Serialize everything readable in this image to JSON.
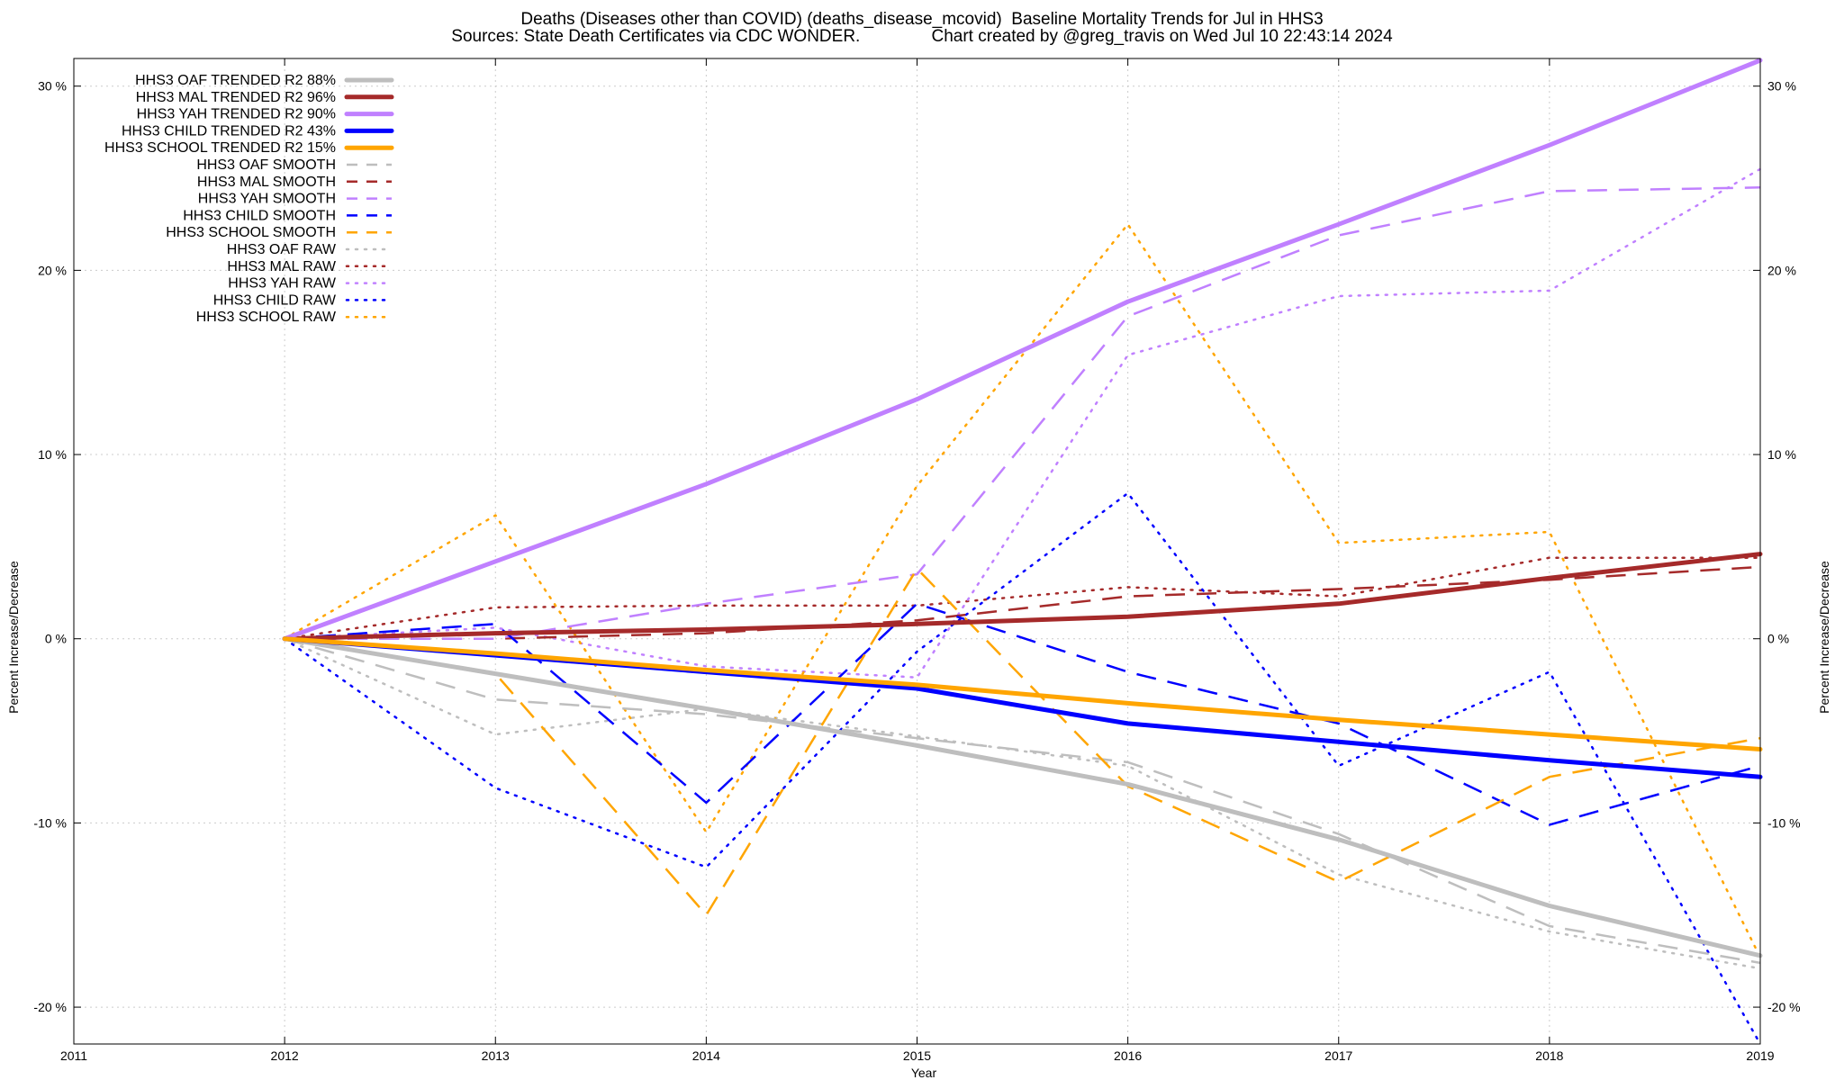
{
  "chart_data": {
    "type": "line",
    "title": "Deaths (Diseases other than COVID) (deaths_disease_mcovid)  Baseline Mortality Trends for Jul in HHS3",
    "subtitle": "Sources: State Death Certificates via CDC WONDER.               Chart created by @greg_travis on Wed Jul 10 22:43:14 2024",
    "xlabel": "Year",
    "ylabel": "Percent Increase/Decrease",
    "y2label": "Percent Increase/Decrease",
    "xlim": [
      2011,
      2019
    ],
    "ylim": [
      -22,
      31.5
    ],
    "x_ticks": [
      "2011",
      "2012",
      "2013",
      "2014",
      "2015",
      "2016",
      "2017",
      "2018",
      "2019"
    ],
    "y_ticks": [
      {
        "value": 30,
        "label": "30 %"
      },
      {
        "value": 20,
        "label": "20 %"
      },
      {
        "value": 10,
        "label": "10 %"
      },
      {
        "value": 0,
        "label": "0 %"
      },
      {
        "value": -10,
        "label": "-10 %"
      },
      {
        "value": -20,
        "label": "-20 %"
      }
    ],
    "grid": true,
    "legend_position": "top-left",
    "x": [
      2012,
      2013,
      2014,
      2015,
      2016,
      2017,
      2018,
      2019
    ],
    "series": [
      {
        "name": "HHS3 OAF TRENDED R2  88%",
        "style": "solid",
        "color": "#bebebe",
        "values": [
          0,
          -1.9,
          -3.8,
          -5.8,
          -7.9,
          -10.9,
          -14.5,
          -17.2
        ]
      },
      {
        "name": "HHS3 MAL TRENDED R2  96%",
        "style": "solid",
        "color": "#a52a2a",
        "values": [
          0,
          0.3,
          0.5,
          0.8,
          1.2,
          1.9,
          3.3,
          4.6
        ]
      },
      {
        "name": "HHS3 YAH TRENDED R2  90%",
        "style": "solid",
        "color": "#c080ff",
        "values": [
          0,
          4.2,
          8.4,
          13.0,
          18.3,
          22.5,
          26.8,
          31.4
        ]
      },
      {
        "name": "HHS3 CHILD TRENDED R2  43%",
        "style": "solid",
        "color": "#0000ff",
        "values": [
          0,
          -0.9,
          -1.8,
          -2.7,
          -4.6,
          -5.6,
          -6.6,
          -7.5
        ]
      },
      {
        "name": "HHS3 SCHOOL TRENDED R2  15%",
        "style": "solid",
        "color": "#ffa500",
        "values": [
          0,
          -0.8,
          -1.7,
          -2.5,
          -3.5,
          -4.4,
          -5.2,
          -6.0
        ]
      },
      {
        "name": "HHS3 OAF SMOOTH",
        "style": "dash",
        "color": "#bebebe",
        "values": [
          0,
          -3.3,
          -4.1,
          -5.4,
          -6.7,
          -10.6,
          -15.6,
          -17.6
        ]
      },
      {
        "name": "HHS3 MAL SMOOTH",
        "style": "dash",
        "color": "#a52a2a",
        "values": [
          0,
          0,
          0.3,
          1.0,
          2.3,
          2.7,
          3.2,
          3.9
        ]
      },
      {
        "name": "HHS3 YAH SMOOTH",
        "style": "dash",
        "color": "#c080ff",
        "values": [
          0,
          0,
          1.9,
          3.5,
          17.5,
          21.9,
          24.3,
          24.5
        ]
      },
      {
        "name": "HHS3 CHILD SMOOTH",
        "style": "dash",
        "color": "#0000ff",
        "values": [
          0,
          0.8,
          -8.9,
          1.9,
          -1.8,
          -4.6,
          -10.1,
          -6.9
        ]
      },
      {
        "name": "HHS3 SCHOOL SMOOTH",
        "style": "dash",
        "color": "#ffa500",
        "values": [
          0,
          -1.9,
          -15.0,
          3.8,
          -8.0,
          -13.2,
          -7.5,
          -5.4
        ]
      },
      {
        "name": "HHS3 OAF RAW",
        "style": "dot",
        "color": "#bebebe",
        "values": [
          0,
          -5.2,
          -3.8,
          -5.3,
          -6.9,
          -12.8,
          -15.9,
          -17.9
        ]
      },
      {
        "name": "HHS3 MAL RAW",
        "style": "dot",
        "color": "#a52a2a",
        "values": [
          0,
          1.7,
          1.8,
          1.8,
          2.8,
          2.3,
          4.4,
          4.4
        ]
      },
      {
        "name": "HHS3 YAH RAW",
        "style": "dot",
        "color": "#c080ff",
        "values": [
          0,
          0.6,
          -1.5,
          -2.1,
          15.4,
          18.6,
          18.9,
          25.5
        ]
      },
      {
        "name": "HHS3 CHILD RAW",
        "style": "dot",
        "color": "#0000ff",
        "values": [
          0,
          -8.1,
          -12.4,
          -0.7,
          7.9,
          -6.9,
          -1.8,
          -22.0
        ]
      },
      {
        "name": "HHS3 SCHOOL RAW",
        "style": "dot",
        "color": "#ffa500",
        "values": [
          0,
          6.7,
          -10.5,
          8.3,
          22.5,
          5.2,
          5.8,
          -17.3
        ]
      }
    ]
  }
}
